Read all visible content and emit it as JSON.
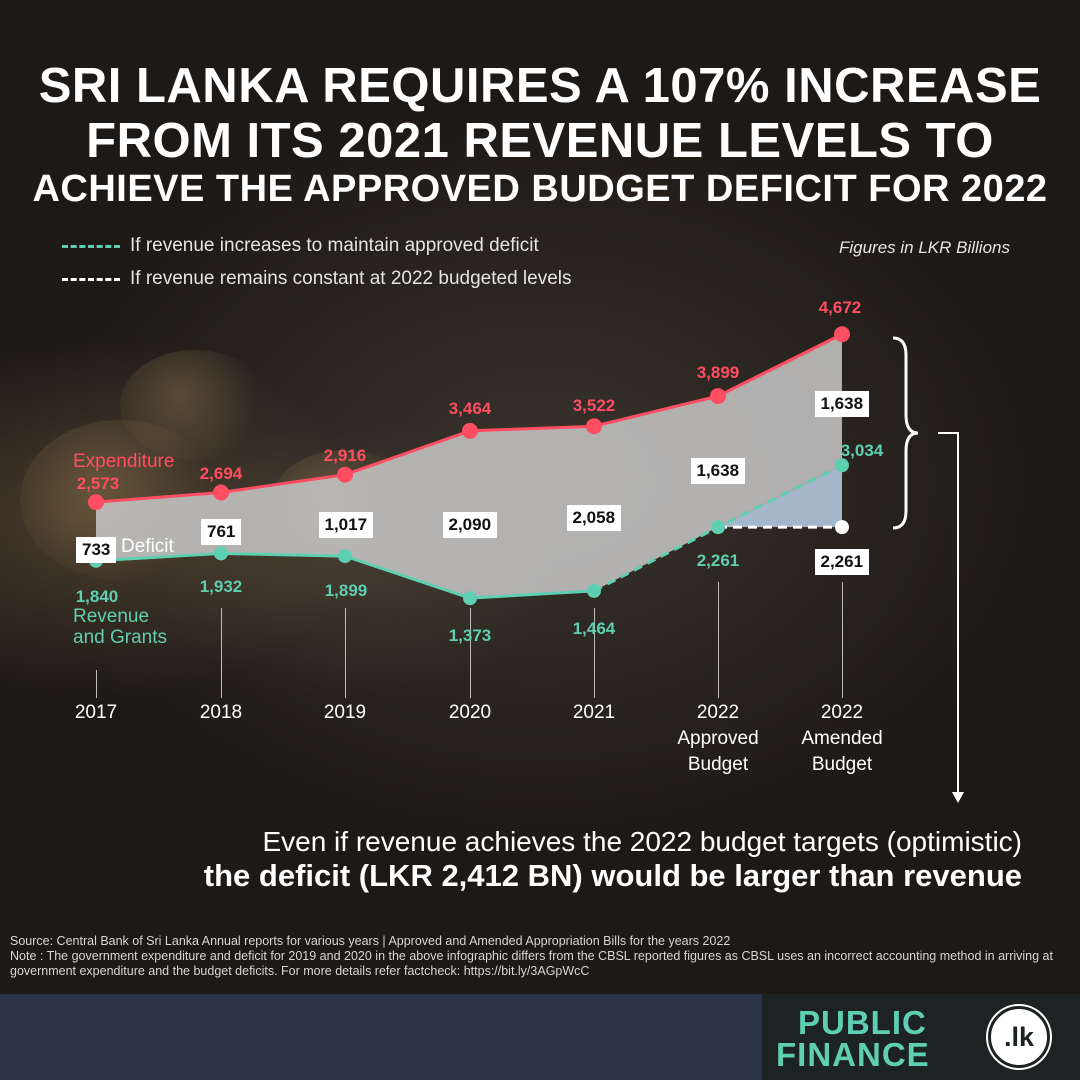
{
  "title_line1": "SRI LANKA REQUIRES A 107% INCREASE",
  "title_line2": "FROM ITS 2021 REVENUE LEVELS TO",
  "title_line3": "ACHIEVE THE APPROVED BUDGET DEFICIT FOR 2022",
  "legend": {
    "increase": "If revenue increases to maintain approved deficit",
    "constant": "If revenue remains constant at 2022 budgeted levels",
    "increase_color": "#5fcfb1",
    "constant_color": "#ffffff"
  },
  "units_note": "Figures in LKR Billions",
  "chart_data": {
    "type": "line",
    "categories": [
      "2017",
      "2018",
      "2019",
      "2020",
      "2021",
      "2022 Approved Budget",
      "2022 Amended Budget"
    ],
    "category_lines": [
      [
        "2017"
      ],
      [
        "2018"
      ],
      [
        "2019"
      ],
      [
        "2020"
      ],
      [
        "2021"
      ],
      [
        "2022",
        "Approved",
        "Budget"
      ],
      [
        "2022",
        "Amended",
        "Budget"
      ]
    ],
    "series": [
      {
        "name": "Expenditure",
        "values": [
          2573,
          2694,
          2916,
          3464,
          3522,
          3899,
          4672
        ],
        "value_labels": [
          "2,573",
          "2,694",
          "2,916",
          "3,464",
          "3,522",
          "3,899",
          "4,672"
        ],
        "color": "#ff4d62"
      },
      {
        "name": "Revenue and Grants",
        "name_lines": [
          "Revenue",
          "and Grants"
        ],
        "values": [
          1840,
          1932,
          1899,
          1373,
          1464,
          2261,
          3034
        ],
        "value_labels": [
          "1,840",
          "1,932",
          "1,899",
          "1,373",
          "1,464",
          "2,261",
          "3,034"
        ],
        "color": "#5fcfb1"
      },
      {
        "name": "Deficit",
        "values": [
          733,
          761,
          1017,
          2090,
          2058,
          1638,
          1638
        ],
        "value_labels": [
          "733",
          "761",
          "1,017",
          "2,090",
          "2,058",
          "1,638",
          "1,638"
        ],
        "color": "#ffffff"
      }
    ],
    "constant_revenue_scenario": {
      "value": 2261,
      "value_label": "2,261"
    },
    "area_fill_color": "#c9c9c9",
    "grid": false,
    "legend_position": "top-left"
  },
  "conclusion": {
    "line1": "Even if revenue achieves the 2022 budget targets (optimistic)",
    "line2": "the deficit (LKR 2,412 BN) would be larger than revenue"
  },
  "notes": {
    "source": "Source: Central Bank of Sri Lanka Annual reports for various years | Approved and Amended Appropriation Bills for the years 2022",
    "note": "Note : The government expenditure and deficit for 2019 and 2020 in the above infographic differs from the CBSL reported figures as CBSL uses an incorrect accounting method in arriving at government expenditure and the budget deficits. For more details refer factcheck: https://bit.ly/3AGpWcC"
  },
  "logo": {
    "line1": "PUBLIC",
    "line2": "FINANCE",
    "badge": ".lk"
  }
}
